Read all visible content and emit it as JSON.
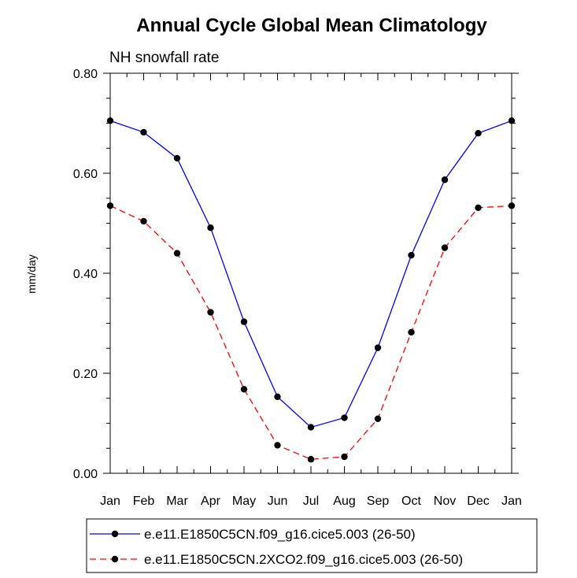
{
  "chart_data": {
    "type": "line",
    "title": "Annual Cycle Global Mean Climatology",
    "subtitle": "NH snowfall rate",
    "xlabel": "",
    "ylabel": "mm/day",
    "categories": [
      "Jan",
      "Feb",
      "Mar",
      "Apr",
      "May",
      "Jun",
      "Jul",
      "Aug",
      "Sep",
      "Oct",
      "Nov",
      "Dec",
      "Jan"
    ],
    "ylim": [
      0,
      0.8
    ],
    "yticks": [
      "0.00",
      "0.20",
      "0.40",
      "0.60",
      "0.80"
    ],
    "grid": false,
    "legend_position": "bottom",
    "series": [
      {
        "name": "e.e11.E1850C5CN.f09_g16.cice5.003 (26-50)",
        "color": "#0000ff",
        "line_style": "solid",
        "values": [
          0.705,
          0.682,
          0.63,
          0.491,
          0.303,
          0.153,
          0.092,
          0.111,
          0.251,
          0.436,
          0.587,
          0.68,
          0.705
        ]
      },
      {
        "name": "e.e11.E1850C5CN.2XCO2.f09_g16.cice5.003 (26-50)",
        "color": "#ff0000",
        "line_style": "dashed",
        "values": [
          0.535,
          0.504,
          0.44,
          0.322,
          0.168,
          0.056,
          0.028,
          0.033,
          0.109,
          0.282,
          0.451,
          0.531,
          0.535
        ]
      }
    ]
  }
}
